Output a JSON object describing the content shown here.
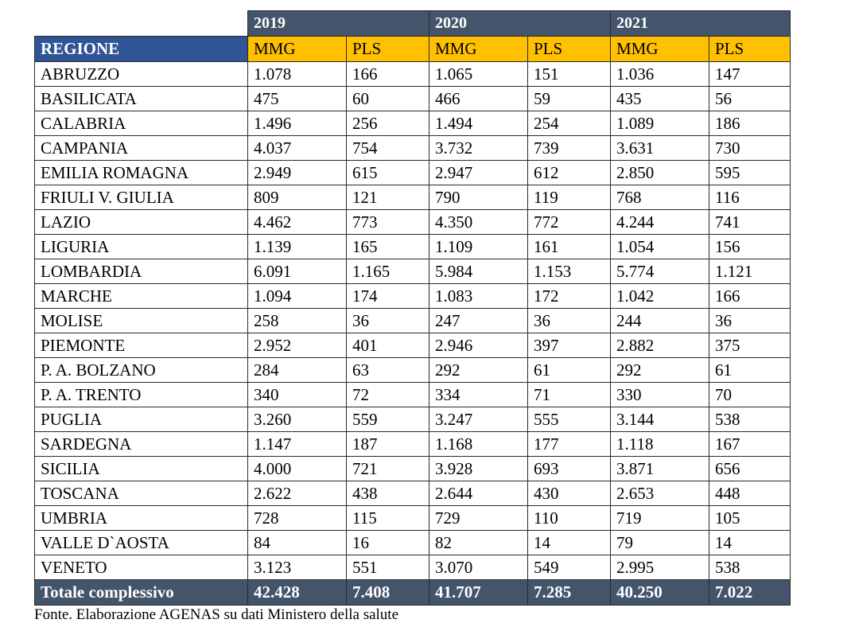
{
  "years": [
    "2019",
    "2020",
    "2021"
  ],
  "header": {
    "region": "REGIONE",
    "mmg": "MMG",
    "pls": "PLS"
  },
  "rows": [
    [
      "ABRUZZO",
      "1.078",
      "166",
      "1.065",
      "151",
      "1.036",
      "147"
    ],
    [
      "BASILICATA",
      "475",
      "60",
      "466",
      "59",
      "435",
      "56"
    ],
    [
      "CALABRIA",
      "1.496",
      "256",
      "1.494",
      "254",
      "1.089",
      "186"
    ],
    [
      "CAMPANIA",
      "4.037",
      "754",
      "3.732",
      "739",
      "3.631",
      "730"
    ],
    [
      "EMILIA ROMAGNA",
      "2.949",
      "615",
      "2.947",
      "612",
      "2.850",
      "595"
    ],
    [
      "FRIULI V. GIULIA",
      "809",
      "121",
      "790",
      "119",
      "768",
      "116"
    ],
    [
      "LAZIO",
      "4.462",
      "773",
      "4.350",
      "772",
      "4.244",
      "741"
    ],
    [
      "LIGURIA",
      "1.139",
      "165",
      "1.109",
      "161",
      "1.054",
      "156"
    ],
    [
      "LOMBARDIA",
      "6.091",
      "1.165",
      "5.984",
      "1.153",
      "5.774",
      "1.121"
    ],
    [
      "MARCHE",
      "1.094",
      "174",
      "1.083",
      "172",
      "1.042",
      "166"
    ],
    [
      "MOLISE",
      "258",
      "36",
      "247",
      "36",
      "244",
      "36"
    ],
    [
      "PIEMONTE",
      "2.952",
      "401",
      "2.946",
      "397",
      "2.882",
      "375"
    ],
    [
      "P. A. BOLZANO",
      "284",
      "63",
      "292",
      "61",
      "292",
      "61"
    ],
    [
      "P. A. TRENTO",
      "340",
      "72",
      "334",
      "71",
      "330",
      "70"
    ],
    [
      "PUGLIA",
      "3.260",
      "559",
      "3.247",
      "555",
      "3.144",
      "538"
    ],
    [
      "SARDEGNA",
      "1.147",
      "187",
      "1.168",
      "177",
      "1.118",
      "167"
    ],
    [
      "SICILIA",
      "4.000",
      "721",
      "3.928",
      "693",
      "3.871",
      "656"
    ],
    [
      "TOSCANA",
      "2.622",
      "438",
      "2.644",
      "430",
      "2.653",
      "448"
    ],
    [
      "UMBRIA",
      "728",
      "115",
      "729",
      "110",
      "719",
      "105"
    ],
    [
      "VALLE D`AOSTA",
      "84",
      "16",
      "82",
      "14",
      "79",
      "14"
    ],
    [
      "VENETO",
      "3.123",
      "551",
      "3.070",
      "549",
      "2.995",
      "538"
    ]
  ],
  "total": [
    "Totale complessivo",
    "42.428",
    "7.408",
    "41.707",
    "7.285",
    "40.250",
    "7.022"
  ],
  "source": "Fonte. Elaborazione AGENAS su dati Ministero della salute"
}
